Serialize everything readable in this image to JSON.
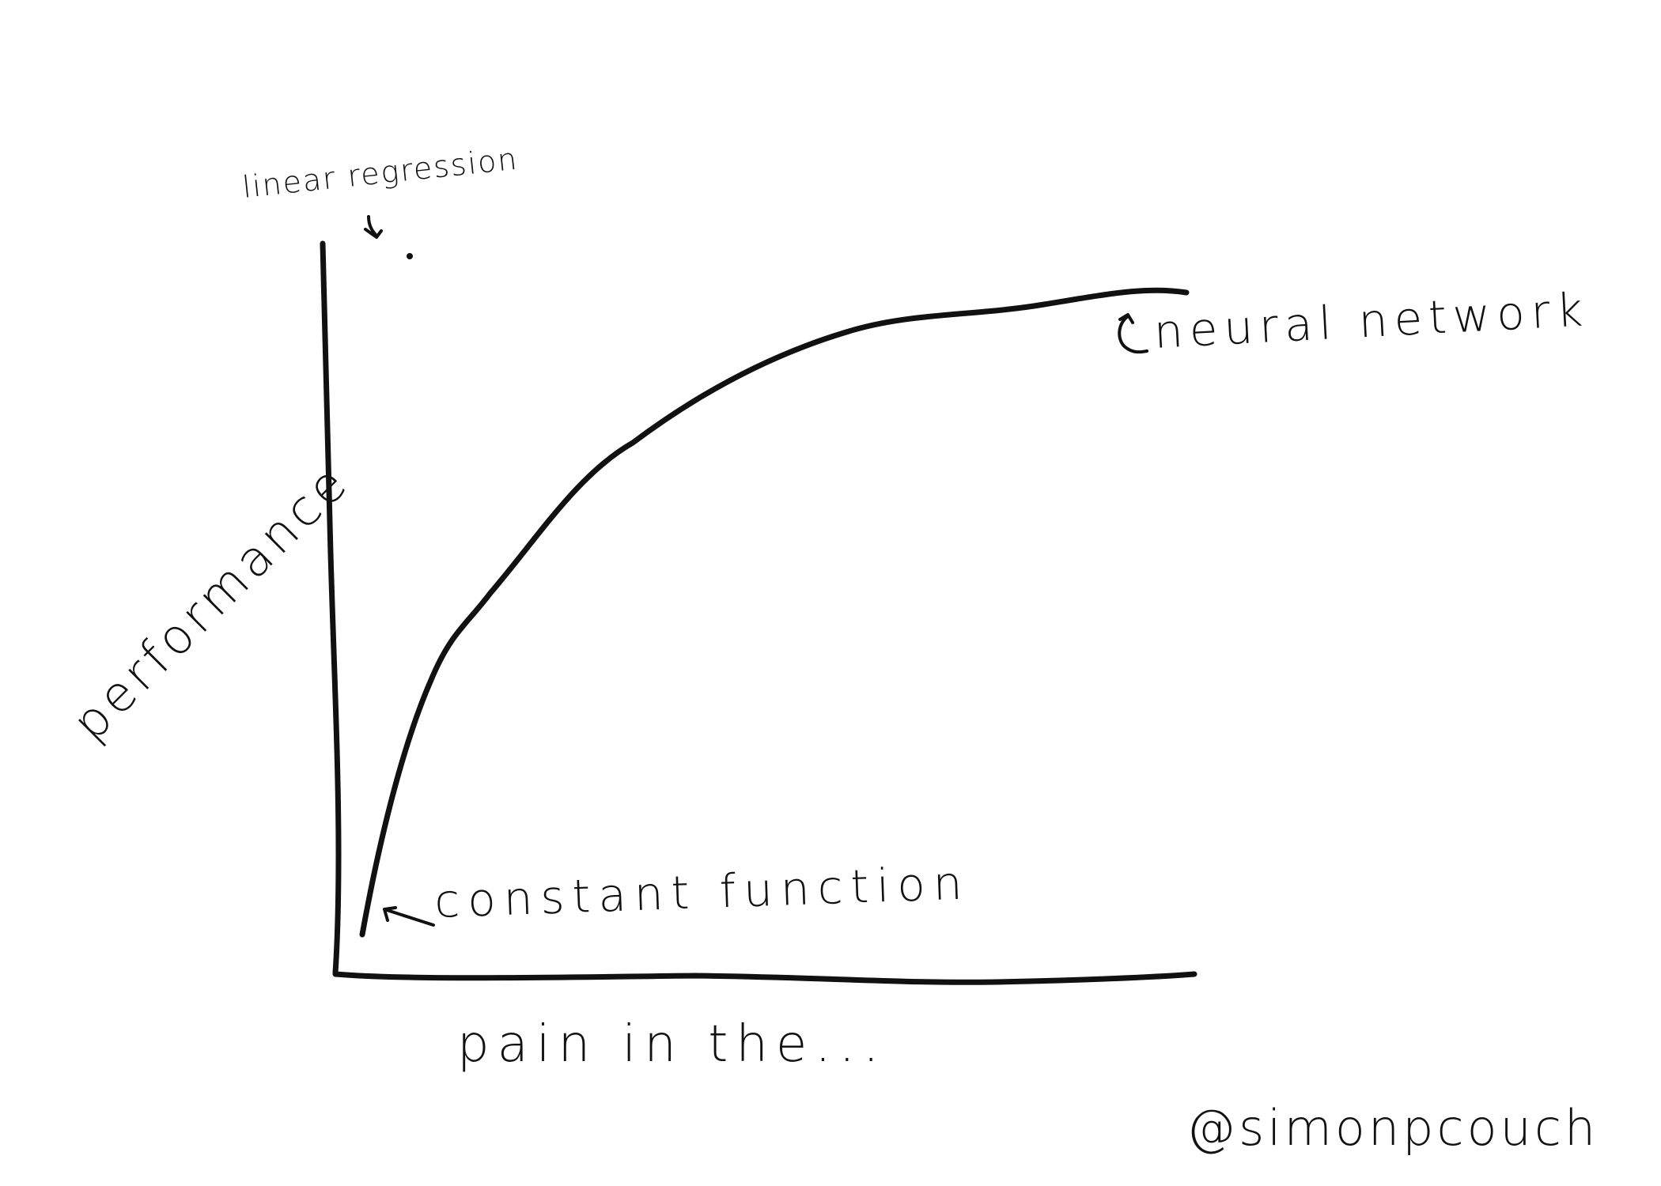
{
  "diagram": {
    "y_axis_label": "performance",
    "x_axis_label": "pain in the...",
    "annotations": {
      "linear_regression": "linear regression",
      "neural_network": "neural network",
      "constant_function": "constant function"
    },
    "signature": "@simonpcouch",
    "ink_color": "#111111"
  }
}
